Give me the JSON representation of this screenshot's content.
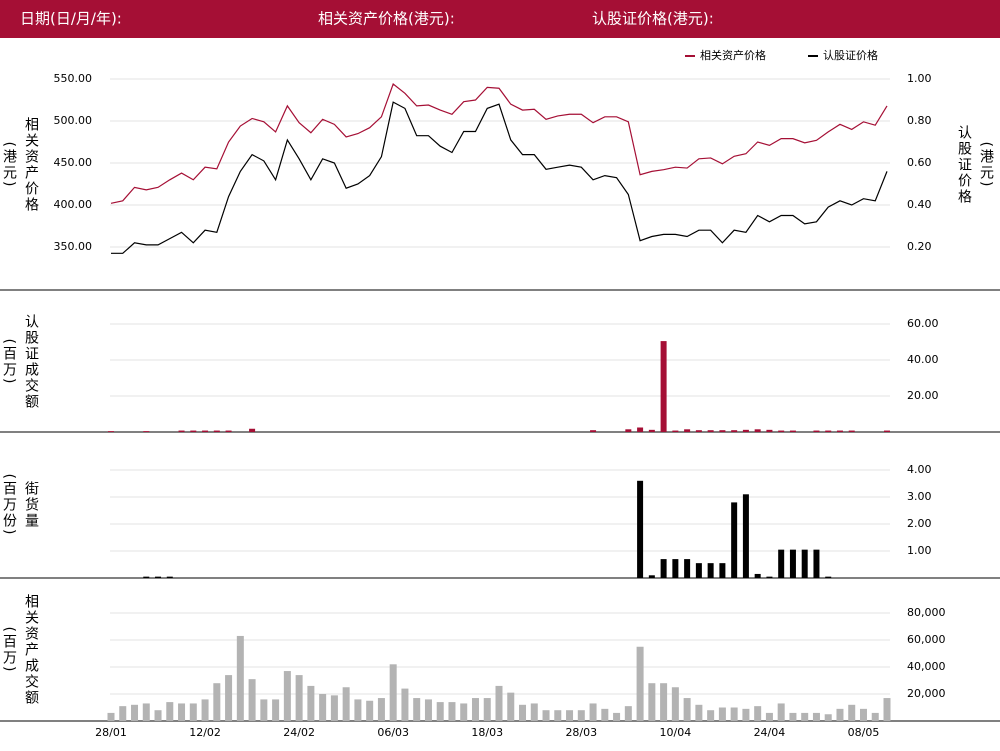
{
  "header": {
    "date_label": "日期(日/月/年):",
    "underlying_label": "相关资产价格(港元):",
    "warrant_label": "认股证价格(港元):"
  },
  "chart_data": [
    {
      "type": "line",
      "legend": "upper right",
      "ylabel": "相关资产价格",
      "ylabel_unit": "(港元)",
      "y2label": "认股证价格",
      "y2label_unit": "(港元)",
      "ylim": [
        320,
        580
      ],
      "yticks": [
        {
          "value": 350,
          "label": "350.00"
        },
        {
          "value": 400,
          "label": "400.00"
        },
        {
          "value": 450,
          "label": "450.00"
        },
        {
          "value": 500,
          "label": "500.00"
        },
        {
          "value": 550,
          "label": "550.00"
        }
      ],
      "y2lim": [
        0.08,
        1.12
      ],
      "y2ticks": [
        {
          "value": 0.2,
          "label": "0.20"
        },
        {
          "value": 0.4,
          "label": "0.40"
        },
        {
          "value": 0.6,
          "label": "0.60"
        },
        {
          "value": 0.8,
          "label": "0.80"
        },
        {
          "value": 1.0,
          "label": "1.00"
        }
      ],
      "series": [
        {
          "name": "相关资产价格",
          "color": "#a50f35",
          "values": [
            402,
            405,
            421,
            418,
            421,
            430,
            438,
            430,
            445,
            443,
            475,
            494,
            503,
            499,
            487,
            518,
            498,
            486,
            502,
            496,
            481,
            485,
            492,
            505,
            544,
            533,
            518,
            519,
            513,
            508,
            523,
            525,
            540,
            539,
            520,
            513,
            514,
            502,
            506,
            508,
            508,
            498,
            505,
            505,
            499,
            436,
            440,
            442,
            445,
            444,
            455,
            456,
            449,
            458,
            461,
            475,
            471,
            479,
            479,
            474,
            477,
            487,
            496,
            490,
            499,
            495,
            518
          ]
        },
        {
          "name": "认股证价格",
          "color": "#000000",
          "axis": "y2",
          "values": [
            0.17,
            0.17,
            0.22,
            0.21,
            0.21,
            0.24,
            0.27,
            0.22,
            0.28,
            0.27,
            0.44,
            0.56,
            0.64,
            0.61,
            0.52,
            0.71,
            0.62,
            0.52,
            0.62,
            0.6,
            0.48,
            0.5,
            0.54,
            0.63,
            0.89,
            0.86,
            0.73,
            0.73,
            0.68,
            0.65,
            0.75,
            0.75,
            0.86,
            0.88,
            0.71,
            0.64,
            0.64,
            0.57,
            0.58,
            0.59,
            0.58,
            0.52,
            0.54,
            0.53,
            0.45,
            0.23,
            0.25,
            0.26,
            0.26,
            0.25,
            0.28,
            0.28,
            0.22,
            0.28,
            0.27,
            0.35,
            0.32,
            0.35,
            0.35,
            0.31,
            0.32,
            0.39,
            0.42,
            0.4,
            0.43,
            0.42,
            0.56
          ]
        }
      ]
    },
    {
      "type": "bar",
      "ylabel": "认股证成交额",
      "ylabel_unit": "(百万)",
      "color": "#a50f35",
      "ylim": [
        0,
        78
      ],
      "y2ticks": [
        {
          "value": 20,
          "label": "20.00"
        },
        {
          "value": 40,
          "label": "40.00"
        },
        {
          "value": 60,
          "label": "60.00"
        }
      ],
      "values": [
        0.5,
        0,
        0,
        0.5,
        0,
        0,
        0.8,
        0.8,
        0.8,
        0.8,
        0.8,
        0,
        1.8,
        0,
        0,
        0,
        0,
        0,
        0,
        0,
        0,
        0,
        0,
        0,
        0,
        0,
        0,
        0,
        0,
        0,
        0,
        0,
        0,
        0,
        0,
        0,
        0,
        0,
        0,
        0,
        0,
        1,
        0,
        0,
        1.5,
        2.5,
        1.2,
        50.5,
        0.8,
        1.5,
        1,
        1,
        1,
        1,
        1.2,
        1.5,
        1.2,
        0.8,
        0.8,
        0,
        0.8,
        0.8,
        0.8,
        0.8,
        0,
        0,
        0.8
      ]
    },
    {
      "type": "bar",
      "ylabel": "街货量",
      "ylabel_unit": "(百万份)",
      "color": "#000000",
      "ylim": [
        0,
        5.2
      ],
      "y2ticks": [
        {
          "value": 1,
          "label": "1.00"
        },
        {
          "value": 2,
          "label": "2.00"
        },
        {
          "value": 3,
          "label": "3.00"
        },
        {
          "value": 4,
          "label": "4.00"
        }
      ],
      "values": [
        0,
        0,
        0,
        0.05,
        0.05,
        0.05,
        0,
        0,
        0,
        0,
        0,
        0,
        0,
        0,
        0,
        0,
        0,
        0,
        0,
        0,
        0,
        0,
        0,
        0,
        0,
        0,
        0,
        0,
        0,
        0,
        0,
        0,
        0,
        0,
        0,
        0,
        0,
        0,
        0,
        0,
        0,
        0,
        0,
        0,
        0,
        3.6,
        0.1,
        0.7,
        0.7,
        0.7,
        0.55,
        0.55,
        0.55,
        2.8,
        3.1,
        0.15,
        0.05,
        1.05,
        1.05,
        1.05,
        1.05,
        0.05,
        0,
        0,
        0,
        0,
        0
      ]
    },
    {
      "type": "bar",
      "ylabel": "相关资产成交额",
      "ylabel_unit": "(百万)",
      "color": "#b3b3b3",
      "ylim": [
        0,
        104000
      ],
      "y2ticks": [
        {
          "value": 20000,
          "label": "20,000"
        },
        {
          "value": 40000,
          "label": "40,000"
        },
        {
          "value": 60000,
          "label": "60,000"
        },
        {
          "value": 80000,
          "label": "80,000"
        }
      ],
      "categories": [
        "28/01",
        null,
        null,
        null,
        null,
        null,
        null,
        null,
        "12/02",
        null,
        null,
        null,
        null,
        null,
        null,
        null,
        "24/02",
        null,
        null,
        null,
        null,
        null,
        null,
        null,
        "06/03",
        null,
        null,
        null,
        null,
        null,
        null,
        null,
        "18/03",
        null,
        null,
        null,
        null,
        null,
        null,
        null,
        "28/03",
        null,
        null,
        null,
        null,
        null,
        null,
        null,
        "10/04",
        null,
        null,
        null,
        null,
        null,
        null,
        null,
        "24/04",
        null,
        null,
        null,
        null,
        null,
        null,
        null,
        "08/05",
        null,
        null
      ],
      "values": [
        6000,
        11000,
        12000,
        13000,
        8000,
        14000,
        13000,
        13000,
        16000,
        28000,
        34000,
        63000,
        31000,
        16000,
        16000,
        37000,
        34000,
        26000,
        20000,
        19000,
        25000,
        16000,
        15000,
        17000,
        42000,
        24000,
        17000,
        16000,
        14000,
        14000,
        13000,
        17000,
        17000,
        26000,
        21000,
        12000,
        13000,
        8000,
        8000,
        8000,
        8000,
        13000,
        9000,
        6000,
        11000,
        55000,
        28000,
        28000,
        25000,
        17000,
        12000,
        8000,
        10000,
        10000,
        9000,
        11000,
        6000,
        13000,
        6000,
        6000,
        6000,
        5000,
        9000,
        12000,
        9000,
        6000,
        17000
      ]
    }
  ]
}
